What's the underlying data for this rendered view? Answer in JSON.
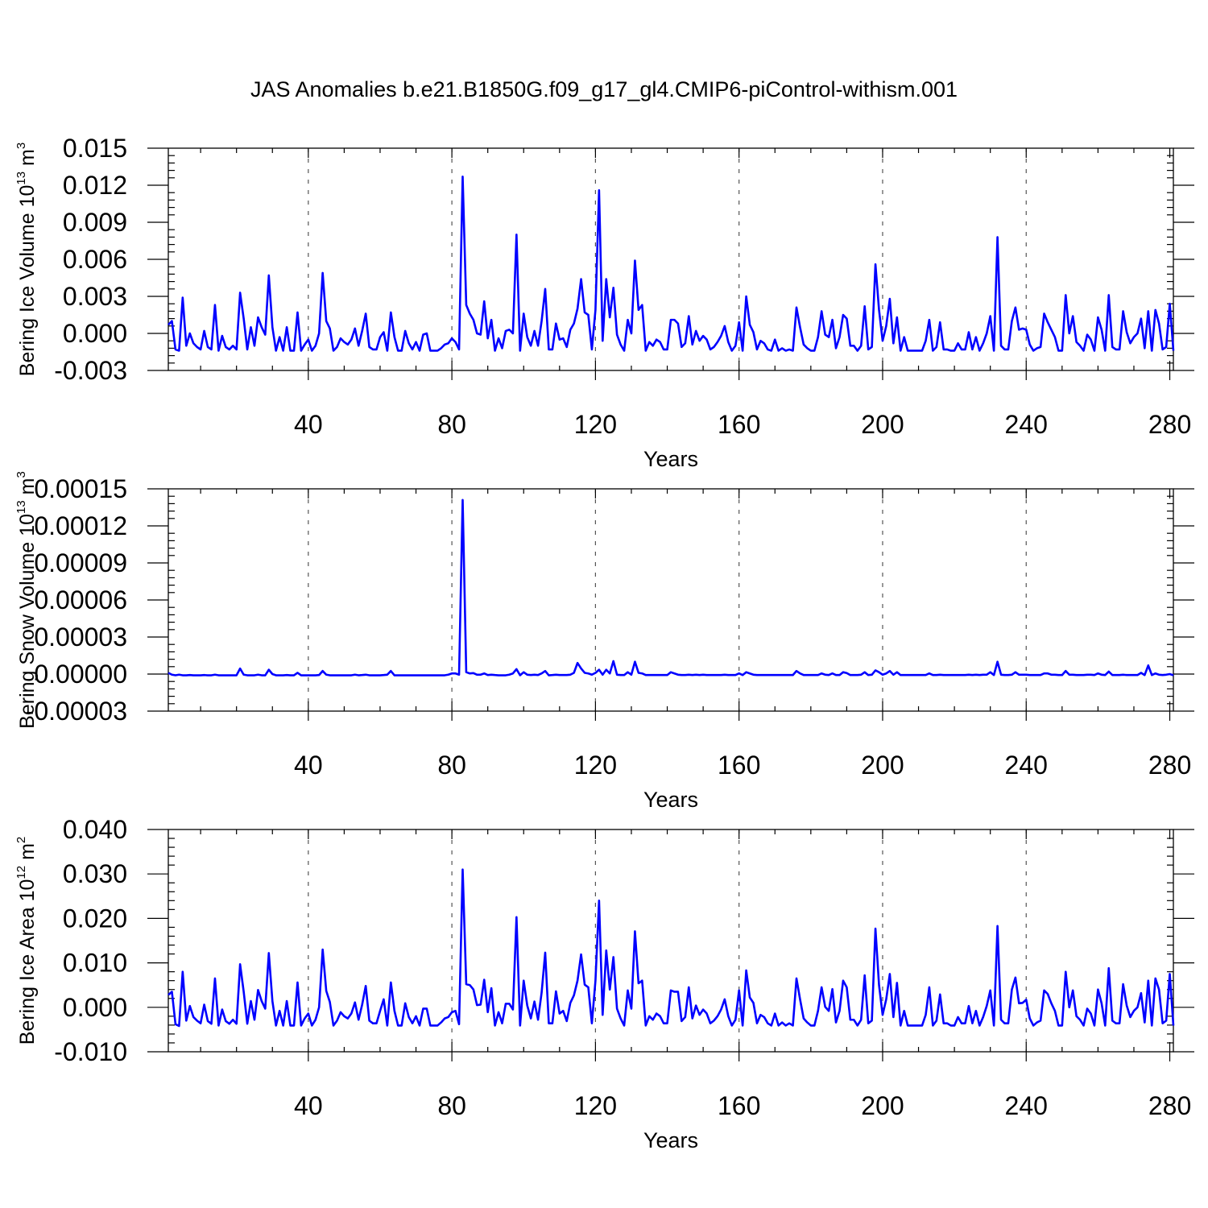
{
  "figure": {
    "title": "JAS Anomalies b.e21.B1850G.f09_g17_gl4.CMIP6-piControl-withism.001"
  },
  "chart_data": [
    {
      "type": "line",
      "ylabel": "Bering Ice Volume 10",
      "ylabel_exponent": "13",
      "ylabel_unit": " m",
      "ylabel_unit_exponent": "3",
      "xlabel": "Years",
      "xlim": [
        1,
        281
      ],
      "ylim": [
        -0.003,
        0.015
      ],
      "xticks": [
        "40",
        "80",
        "120",
        "160",
        "200",
        "240",
        "280"
      ],
      "yticks": [
        "0.015",
        "0.012",
        "0.009",
        "0.006",
        "0.003",
        "0.000",
        "-0.003"
      ],
      "ytick_values": [
        0.015,
        0.012,
        0.009,
        0.006,
        0.003,
        0.0,
        -0.003
      ],
      "grid_x": [
        40,
        80,
        120,
        160,
        200,
        240
      ],
      "color": "#0000ff",
      "x_start": 1,
      "values": [
        0.0007,
        0.001,
        -0.0013,
        -0.0014,
        0.0029,
        -0.001,
        0.0,
        -0.0008,
        -0.0011,
        -0.0013,
        0.0002,
        -0.0011,
        -0.0013,
        0.0023,
        -0.0014,
        -0.0002,
        -0.0011,
        -0.0013,
        -0.001,
        -0.0013,
        0.0033,
        0.0012,
        -0.0013,
        0.0005,
        -0.001,
        0.0013,
        0.0005,
        -0.0001,
        0.0047,
        0.0005,
        -0.0014,
        -0.0003,
        -0.0014,
        0.0005,
        -0.0014,
        -0.0014,
        0.0017,
        -0.0014,
        -0.0009,
        -0.0005,
        -0.0014,
        -0.001,
        0.0,
        0.0049,
        0.001,
        0.0004,
        -0.0014,
        -0.0011,
        -0.0004,
        -0.0007,
        -0.0009,
        -0.0005,
        0.0004,
        -0.001,
        0.0002,
        0.0016,
        -0.0011,
        -0.0013,
        -0.0013,
        -0.0003,
        0.0001,
        -0.0014,
        0.0017,
        -0.0003,
        -0.0014,
        -0.0014,
        0.0002,
        -0.0008,
        -0.0013,
        -0.0007,
        -0.0014,
        -0.0001,
        0.0,
        -0.0014,
        -0.0014,
        -0.0014,
        -0.0012,
        -0.0009,
        -0.0008,
        -0.0004,
        -0.0007,
        -0.0013,
        0.0127,
        0.0023,
        0.0016,
        0.0011,
        0.0,
        -0.0001,
        0.0026,
        -0.0004,
        0.0011,
        -0.0014,
        -0.0004,
        -0.0012,
        0.0002,
        0.0003,
        0.0,
        0.008,
        -0.0014,
        0.0016,
        -0.0003,
        -0.001,
        0.0002,
        -0.001,
        0.001,
        0.0036,
        -0.0013,
        -0.0013,
        0.0008,
        -0.0005,
        -0.0004,
        -0.0011,
        0.0003,
        0.0008,
        0.002,
        0.0044,
        0.0017,
        0.0015,
        -0.0013,
        0.0019,
        0.0116,
        -0.0006,
        0.0044,
        0.0013,
        0.0037,
        -0.0001,
        -0.0009,
        -0.0014,
        0.0011,
        0.0,
        0.0059,
        0.0019,
        0.0023,
        -0.0014,
        -0.0007,
        -0.001,
        -0.0005,
        -0.0007,
        -0.0013,
        -0.0013,
        0.0011,
        0.0011,
        0.0008,
        -0.0011,
        -0.0008,
        0.0014,
        -0.0009,
        0.0002,
        -0.0006,
        -0.0002,
        -0.0005,
        -0.0013,
        -0.0011,
        -0.0007,
        -0.0002,
        0.0006,
        -0.0007,
        -0.0014,
        -0.001,
        0.0009,
        -0.0014,
        0.003,
        0.0007,
        0.0001,
        -0.0013,
        -0.0006,
        -0.0008,
        -0.0013,
        -0.0014,
        -0.0005,
        -0.0014,
        -0.0012,
        -0.0014,
        -0.0013,
        -0.0014,
        0.0021,
        0.0005,
        -0.0009,
        -0.0012,
        -0.0014,
        -0.0014,
        -0.0003,
        0.0018,
        -0.0001,
        -0.0003,
        0.0011,
        -0.0012,
        -0.0003,
        0.0015,
        0.0012,
        -0.001,
        -0.001,
        -0.0014,
        -0.001,
        0.0022,
        -0.0013,
        -0.0011,
        0.0056,
        0.0019,
        -0.0006,
        0.0006,
        0.0028,
        -0.0008,
        0.0013,
        -0.0014,
        -0.0003,
        -0.0014,
        -0.0014,
        -0.0014,
        -0.0014,
        -0.0014,
        -0.0006,
        0.0011,
        -0.0014,
        -0.0011,
        0.0009,
        -0.0013,
        -0.0013,
        -0.0014,
        -0.0014,
        -0.0008,
        -0.0013,
        -0.0013,
        0.0001,
        -0.0013,
        -0.0003,
        -0.0014,
        -0.0008,
        0.0,
        0.0014,
        -0.0014,
        0.0078,
        -0.001,
        -0.0013,
        -0.0013,
        0.001,
        0.0021,
        0.0003,
        0.0004,
        0.0003,
        -0.0009,
        -0.0014,
        -0.0012,
        -0.0011,
        0.0016,
        0.0009,
        0.0003,
        -0.0003,
        -0.0014,
        -0.0014,
        0.0031,
        0.0,
        0.0014,
        -0.0007,
        -0.001,
        -0.0014,
        -0.0001,
        -0.0005,
        -0.0014,
        0.0013,
        0.0003,
        -0.0014,
        0.0031,
        -0.0011,
        -0.0013,
        -0.0013,
        0.0018,
        0.0001,
        -0.0008,
        -0.0003,
        0.0,
        0.0012,
        -0.0012,
        0.0018,
        -0.0014,
        0.0019,
        0.0008,
        -0.0013,
        -0.0011,
        0.0024,
        -0.0014
      ]
    },
    {
      "type": "line",
      "ylabel": "Bering Snow Volume 10",
      "ylabel_exponent": "13",
      "ylabel_unit": " m",
      "ylabel_unit_exponent": "3",
      "xlabel": "Years",
      "xlim": [
        1,
        281
      ],
      "ylim": [
        -3e-05,
        0.00015
      ],
      "xticks": [
        "40",
        "80",
        "120",
        "160",
        "200",
        "240",
        "280"
      ],
      "yticks": [
        "0.00015",
        "0.00012",
        "0.00009",
        "0.00006",
        "0.00003",
        "0.00000",
        "-0.00003"
      ],
      "ytick_values": [
        0.00015,
        0.00012,
        9e-05,
        6e-05,
        3e-05,
        0.0,
        -3e-05
      ],
      "grid_x": [
        40,
        80,
        120,
        160,
        200,
        240
      ],
      "color": "#0000ff",
      "x_start": 1,
      "values": [
        1e-06,
        -5e-07,
        -1e-06,
        -5e-07,
        -1e-06,
        -1e-06,
        -8e-07,
        -1e-06,
        -1e-06,
        -1e-06,
        -8e-07,
        -1e-06,
        -1e-06,
        -5e-07,
        -1e-06,
        -1e-06,
        -1e-06,
        -1e-06,
        -1e-06,
        -1e-06,
        4.5e-06,
        -5e-07,
        -1e-06,
        -1e-06,
        -1e-06,
        -5e-07,
        -1e-06,
        -1e-06,
        3.5e-06,
        0.0,
        -1e-06,
        -1e-06,
        -1e-06,
        -8e-07,
        -1e-06,
        -1e-06,
        1e-06,
        -1e-06,
        -1e-06,
        -1e-06,
        -1e-06,
        -1e-06,
        -8e-07,
        2.5e-06,
        -5e-07,
        -1e-06,
        -1e-06,
        -1e-06,
        -1e-06,
        -1e-06,
        -1e-06,
        -1e-06,
        -5e-07,
        -1e-06,
        -8e-07,
        -5e-07,
        -1e-06,
        -1e-06,
        -1e-06,
        -1e-06,
        -8e-07,
        -5e-07,
        2.5e-06,
        -1e-06,
        -1e-06,
        -1e-06,
        -1e-06,
        -1e-06,
        -1e-06,
        -1e-06,
        -1e-06,
        -1e-06,
        -1e-06,
        -1e-06,
        -1e-06,
        -1e-06,
        -1e-06,
        -1e-06,
        -5e-07,
        5e-07,
        5e-07,
        -5e-07,
        0.000141,
        1.5e-06,
        5e-07,
        8e-07,
        -5e-07,
        -5e-07,
        5e-07,
        -8e-07,
        -5e-07,
        -8e-07,
        -1e-06,
        -1e-06,
        -1e-06,
        -5e-07,
        5e-07,
        4e-06,
        -1e-06,
        1.5e-06,
        -5e-07,
        -8e-07,
        -5e-07,
        -8e-07,
        5e-07,
        2.5e-06,
        -1e-06,
        -8e-07,
        -5e-07,
        -8e-07,
        -8e-07,
        -8e-07,
        -5e-07,
        1e-06,
        9e-06,
        4.5e-06,
        1e-06,
        5e-07,
        -5e-07,
        1e-06,
        3.5e-06,
        -5e-07,
        3.5e-06,
        5e-07,
        1.05e-05,
        -5e-07,
        -8e-07,
        -8e-07,
        1.5e-06,
        -5e-07,
        1e-05,
        1e-06,
        5e-07,
        -8e-07,
        -8e-07,
        -8e-07,
        -8e-07,
        -8e-07,
        -8e-07,
        -8e-07,
        1.5e-06,
        5e-07,
        -5e-07,
        -8e-07,
        -8e-07,
        -5e-07,
        -8e-07,
        -5e-07,
        -8e-07,
        -5e-07,
        -8e-07,
        -8e-07,
        -8e-07,
        -8e-07,
        -8e-07,
        -5e-07,
        -8e-07,
        -8e-07,
        -8e-07,
        5e-07,
        -8e-07,
        1.5e-06,
        5e-07,
        -5e-07,
        -8e-07,
        -8e-07,
        -8e-07,
        -8e-07,
        -8e-07,
        -8e-07,
        -8e-07,
        -8e-07,
        -8e-07,
        -8e-07,
        -8e-07,
        2.5e-06,
        5e-07,
        -8e-07,
        -8e-07,
        -8e-07,
        -8e-07,
        -8e-07,
        5e-07,
        -5e-07,
        -8e-07,
        5e-07,
        -8e-07,
        -8e-07,
        1.5e-06,
        8e-07,
        -8e-07,
        -8e-07,
        -8e-07,
        -5e-07,
        1.5e-06,
        -8e-07,
        -5e-07,
        3e-06,
        1.5e-06,
        -5e-07,
        5e-07,
        2.5e-06,
        -5e-07,
        1.5e-06,
        -8e-07,
        -8e-07,
        -8e-07,
        -8e-07,
        -8e-07,
        -8e-07,
        -8e-07,
        -8e-07,
        5e-07,
        -8e-07,
        -8e-07,
        -5e-07,
        -8e-07,
        -8e-07,
        -8e-07,
        -8e-07,
        -8e-07,
        -8e-07,
        -8e-07,
        -5e-07,
        -8e-07,
        -5e-07,
        -8e-07,
        -5e-07,
        -5e-07,
        1.5e-06,
        -8e-07,
        1e-05,
        -5e-07,
        -8e-07,
        -8e-07,
        -5e-07,
        1.5e-06,
        -5e-07,
        -5e-07,
        -5e-07,
        -8e-07,
        -8e-07,
        -8e-07,
        -8e-07,
        5e-07,
        5e-07,
        -5e-07,
        -5e-07,
        -8e-07,
        -8e-07,
        2.5e-06,
        -5e-07,
        -5e-07,
        -8e-07,
        -8e-07,
        -8e-07,
        -5e-07,
        -5e-07,
        -8e-07,
        5e-07,
        -5e-07,
        -8e-07,
        2e-06,
        -8e-07,
        -8e-07,
        -8e-07,
        -5e-07,
        -8e-07,
        -8e-07,
        -8e-07,
        -8e-07,
        1e-06,
        -8e-07,
        7e-06,
        -8e-07,
        5e-07,
        -5e-07,
        -8e-07,
        -5e-07,
        0.0,
        -1e-06
      ]
    },
    {
      "type": "line",
      "ylabel": "Bering Ice Area 10",
      "ylabel_exponent": "12",
      "ylabel_unit": " m",
      "ylabel_unit_exponent": "2",
      "xlabel": "Years",
      "xlim": [
        1,
        281
      ],
      "ylim": [
        -0.01,
        0.04
      ],
      "xticks": [
        "40",
        "80",
        "120",
        "160",
        "200",
        "240",
        "280"
      ],
      "yticks": [
        "0.040",
        "0.030",
        "0.020",
        "0.010",
        "0.000",
        "-0.010"
      ],
      "ytick_values": [
        0.04,
        0.03,
        0.02,
        0.01,
        0.0,
        -0.01
      ],
      "grid_x": [
        40,
        80,
        120,
        160,
        200,
        240
      ],
      "color": "#0000ff",
      "x_start": 1,
      "values": [
        0.0028,
        0.0035,
        -0.0038,
        -0.0042,
        0.008,
        -0.003,
        0.0003,
        -0.0022,
        -0.003,
        -0.0036,
        0.0006,
        -0.0031,
        -0.0037,
        0.0065,
        -0.0041,
        -0.0005,
        -0.0031,
        -0.0037,
        -0.0028,
        -0.0037,
        0.0097,
        0.0035,
        -0.0037,
        0.0014,
        -0.0028,
        0.0039,
        0.0014,
        -0.0003,
        0.0122,
        0.0014,
        -0.0041,
        -0.0008,
        -0.0041,
        0.0014,
        -0.0041,
        -0.0041,
        0.0056,
        -0.0041,
        -0.0025,
        -0.0014,
        -0.0041,
        -0.0028,
        0.0,
        0.013,
        0.0037,
        0.0012,
        -0.0041,
        -0.003,
        -0.0011,
        -0.002,
        -0.0025,
        -0.0014,
        0.0011,
        -0.0028,
        0.0006,
        0.0048,
        -0.003,
        -0.0036,
        -0.0036,
        -0.0008,
        0.0018,
        -0.0041,
        0.0056,
        -0.0008,
        -0.0041,
        -0.0041,
        0.0009,
        -0.0022,
        -0.0036,
        -0.002,
        -0.0041,
        -0.0003,
        -0.0003,
        -0.0041,
        -0.0041,
        -0.0041,
        -0.0034,
        -0.0025,
        -0.0022,
        -0.0011,
        -0.0008,
        -0.0038,
        0.031,
        0.0052,
        0.005,
        0.004,
        0.0005,
        0.0006,
        0.0062,
        -0.0011,
        0.0043,
        -0.0041,
        -0.0011,
        -0.0036,
        0.0008,
        0.0008,
        -0.0005,
        0.0203,
        -0.0041,
        0.006,
        0.0004,
        -0.0025,
        0.0013,
        -0.0028,
        0.0033,
        0.0123,
        -0.0036,
        -0.0036,
        0.0036,
        -0.0014,
        -0.0008,
        -0.0031,
        0.001,
        0.0027,
        0.006,
        0.0119,
        0.0051,
        0.0045,
        -0.0036,
        0.006,
        0.024,
        -0.0017,
        0.0128,
        0.004,
        0.0113,
        -0.0003,
        -0.0025,
        -0.0041,
        0.0038,
        -0.0003,
        0.0171,
        0.0054,
        0.006,
        -0.0041,
        -0.002,
        -0.0028,
        -0.0014,
        -0.002,
        -0.0036,
        -0.0036,
        0.0038,
        0.0035,
        0.0035,
        -0.0031,
        -0.0022,
        0.0045,
        -0.0025,
        0.0004,
        -0.0017,
        -0.0005,
        -0.0014,
        -0.0036,
        -0.003,
        -0.002,
        -0.0005,
        0.0018,
        -0.002,
        -0.0041,
        -0.0028,
        0.0038,
        -0.0041,
        0.0083,
        0.0022,
        0.001,
        -0.0036,
        -0.0017,
        -0.0022,
        -0.0036,
        -0.0041,
        -0.0014,
        -0.0041,
        -0.0034,
        -0.0041,
        -0.0036,
        -0.0041,
        0.0065,
        0.0018,
        -0.0025,
        -0.0034,
        -0.0041,
        -0.0041,
        -0.0008,
        0.0045,
        0.0001,
        -0.0008,
        0.0041,
        -0.0034,
        -0.0008,
        0.006,
        0.0045,
        -0.0028,
        -0.0028,
        -0.0041,
        -0.0028,
        0.0072,
        -0.0036,
        -0.003,
        0.0177,
        0.005,
        -0.0017,
        0.0018,
        0.0075,
        -0.0022,
        0.0055,
        -0.0041,
        -0.0008,
        -0.0041,
        -0.0041,
        -0.0041,
        -0.0041,
        -0.0041,
        -0.0017,
        0.0045,
        -0.0041,
        -0.003,
        0.0029,
        -0.0036,
        -0.0036,
        -0.0041,
        -0.0041,
        -0.0022,
        -0.0036,
        -0.0036,
        0.0003,
        -0.0036,
        -0.0008,
        -0.0041,
        -0.0022,
        0.0003,
        0.0038,
        -0.0041,
        0.0183,
        -0.0028,
        -0.0036,
        -0.0036,
        0.004,
        0.0067,
        0.0009,
        0.001,
        0.0017,
        -0.0025,
        -0.0041,
        -0.0034,
        -0.003,
        0.0038,
        0.003,
        0.0009,
        -0.0008,
        -0.0041,
        -0.0041,
        0.008,
        0.0,
        0.0038,
        -0.002,
        -0.0028,
        -0.0041,
        -0.0003,
        -0.0014,
        -0.0041,
        0.004,
        0.0009,
        -0.0041,
        0.0088,
        -0.003,
        -0.0036,
        -0.0036,
        0.0052,
        0.0004,
        -0.0022,
        -0.0008,
        0.0,
        0.0032,
        -0.0034,
        0.006,
        -0.0041,
        0.0065,
        0.004,
        -0.0036,
        -0.003,
        0.0075,
        -0.0041
      ]
    }
  ]
}
